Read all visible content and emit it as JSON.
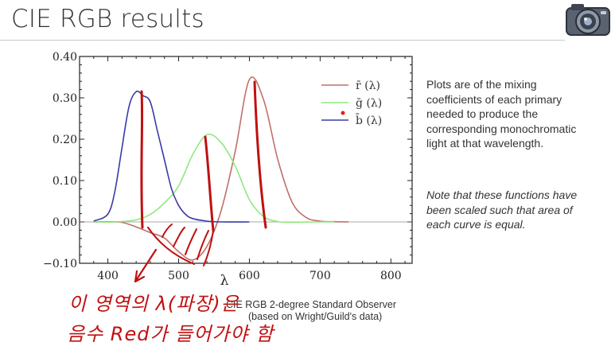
{
  "slide": {
    "title": "CIE RGB results",
    "description": "Plots are of the mixing coefficients of each  primary needed  to  produce the corresponding monochromatic light at  that wavelength.",
    "note": "Note that these functions have been scaled such that area of each curve  is equal.",
    "caption_line1": "CIE RGB 2-degree Standard Observer",
    "caption_line2": "(based on Wright/Guild's data)",
    "annotation_line1": "이 영역의 λ(파장)은",
    "annotation_line2": "음수 Red가 들어가야 함",
    "colors": {
      "red_curve": "#c0706a",
      "green_curve": "#90e880",
      "blue_curve": "#3a3aa8",
      "annotation": "#c01010"
    }
  },
  "chart_data": {
    "type": "line",
    "title": "",
    "xlabel": "λ",
    "ylabel": "",
    "xlim": [
      360,
      830
    ],
    "ylim": [
      -0.1,
      0.4
    ],
    "xticks": [
      "400",
      "500",
      "600",
      "700",
      "800"
    ],
    "yticks": [
      "−0.10",
      "0.00",
      "0.10",
      "0.20",
      "0.30",
      "0.40"
    ],
    "legend_position": "top-right",
    "series": [
      {
        "name": "r̄ (λ)",
        "color": "#c0706a",
        "x": [
          380,
          400,
          420,
          440,
          460,
          480,
          500,
          520,
          540,
          560,
          580,
          600,
          620,
          640,
          660,
          680,
          700,
          720,
          740
        ],
        "y": [
          0.0,
          0.0003,
          -0.0011,
          -0.012,
          -0.026,
          -0.039,
          -0.072,
          -0.092,
          -0.059,
          0.027,
          0.171,
          0.344,
          0.296,
          0.152,
          0.049,
          0.011,
          0.002,
          0.0005,
          0.0001
        ]
      },
      {
        "name": "ḡ (λ)",
        "color": "#90e880",
        "x": [
          380,
          400,
          420,
          440,
          460,
          480,
          500,
          520,
          540,
          560,
          580,
          600,
          620,
          640,
          660,
          680,
          700,
          720
        ],
        "y": [
          0.0,
          -0.0003,
          0.001,
          0.005,
          0.018,
          0.046,
          0.087,
          0.163,
          0.211,
          0.192,
          0.135,
          0.054,
          0.013,
          0.001,
          -0.001,
          -0.0003,
          0.0,
          0.0
        ]
      },
      {
        "name": "b̄ (λ)",
        "color": "#3a3aa8",
        "x": [
          380,
          400,
          410,
          420,
          430,
          440,
          450,
          460,
          470,
          480,
          490,
          500,
          510,
          520,
          540,
          560,
          600
        ],
        "y": [
          0.002,
          0.019,
          0.075,
          0.18,
          0.28,
          0.315,
          0.305,
          0.29,
          0.22,
          0.15,
          0.08,
          0.04,
          0.018,
          0.008,
          0.002,
          0.0,
          0.0
        ]
      }
    ]
  }
}
